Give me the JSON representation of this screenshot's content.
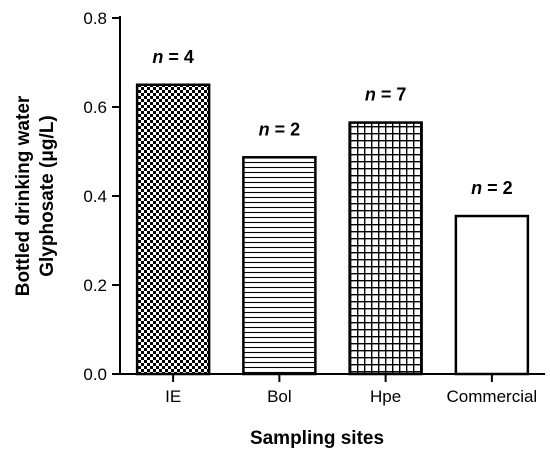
{
  "chart_data": {
    "type": "bar",
    "categories": [
      "IE",
      "Bol",
      "Hpe",
      "Commercial"
    ],
    "values": [
      0.65,
      0.487,
      0.565,
      0.355
    ],
    "bar_labels": [
      {
        "var": "n",
        "rest": " = 4"
      },
      {
        "var": "n",
        "rest": " = 2"
      },
      {
        "var": "n",
        "rest": " = 7"
      },
      {
        "var": "n",
        "rest": " = 2"
      }
    ],
    "patterns": [
      "checker",
      "horizontal-lines",
      "grid",
      "none"
    ],
    "xlabel": "Sampling sites",
    "ylabel_lines": [
      "Bottled drinking water",
      "Glyphosate (μg/L)"
    ],
    "ylim": [
      0,
      0.8
    ],
    "yticks": [
      0.0,
      0.2,
      0.4,
      0.6,
      0.8
    ],
    "ytick_labels": [
      "0.0",
      "0.2",
      "0.4",
      "0.6",
      "0.8"
    ],
    "grid": false,
    "colors": {
      "bar_fill": "#ffffff",
      "bar_stroke": "#000000",
      "pattern": "#000000"
    }
  }
}
